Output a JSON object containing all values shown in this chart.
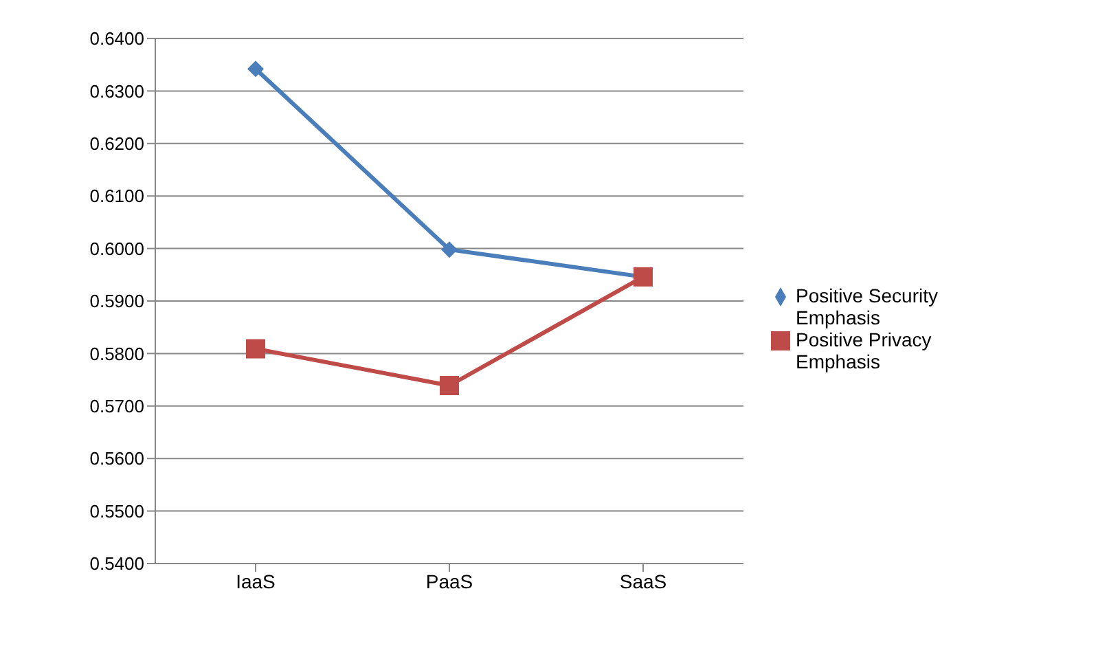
{
  "chart_data": {
    "type": "line",
    "categories": [
      "IaaS",
      "PaaS",
      "SaaS"
    ],
    "series": [
      {
        "name": "Positive Security Emphasis",
        "color": "#4a7ebb",
        "marker": "diamond",
        "values": [
          0.6342,
          0.5998,
          0.5946
        ]
      },
      {
        "name": "Positive Privacy Emphasis",
        "color": "#be4b48",
        "marker": "square",
        "values": [
          0.5809,
          0.5739,
          0.5946
        ]
      }
    ],
    "ylim": [
      0.54,
      0.64
    ],
    "yticks": [
      {
        "value": 0.54,
        "label": "0.5400"
      },
      {
        "value": 0.55,
        "label": "0.5500"
      },
      {
        "value": 0.56,
        "label": "0.5600"
      },
      {
        "value": 0.57,
        "label": "0.5700"
      },
      {
        "value": 0.58,
        "label": "0.5800"
      },
      {
        "value": 0.59,
        "label": "0.5900"
      },
      {
        "value": 0.6,
        "label": "0.6000"
      },
      {
        "value": 0.61,
        "label": "0.6100"
      },
      {
        "value": 0.62,
        "label": "0.6200"
      },
      {
        "value": 0.63,
        "label": "0.6300"
      },
      {
        "value": 0.64,
        "label": "0.6400"
      }
    ],
    "grid": "y",
    "legend": "right",
    "line_style": "solid"
  }
}
